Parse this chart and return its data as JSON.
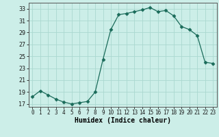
{
  "x": [
    0,
    1,
    2,
    3,
    4,
    5,
    6,
    7,
    8,
    9,
    10,
    11,
    12,
    13,
    14,
    15,
    16,
    17,
    18,
    19,
    20,
    21,
    22,
    23
  ],
  "y": [
    18.2,
    19.2,
    18.5,
    17.8,
    17.3,
    17.0,
    17.2,
    17.4,
    19.0,
    24.5,
    29.5,
    32.0,
    32.2,
    32.5,
    32.8,
    33.2,
    32.5,
    32.7,
    31.8,
    30.0,
    29.5,
    28.5,
    24.0,
    23.8
  ],
  "line_color": "#1a6b5a",
  "marker": "D",
  "marker_size": 2.5,
  "bg_color": "#cceee8",
  "grid_color": "#aad8d0",
  "xlabel": "Humidex (Indice chaleur)",
  "ylim": [
    16.5,
    34
  ],
  "xlim": [
    -0.5,
    23.5
  ],
  "yticks": [
    17,
    19,
    21,
    23,
    25,
    27,
    29,
    31,
    33
  ],
  "xticks": [
    0,
    1,
    2,
    3,
    4,
    5,
    6,
    7,
    8,
    9,
    10,
    11,
    12,
    13,
    14,
    15,
    16,
    17,
    18,
    19,
    20,
    21,
    22,
    23
  ],
  "xlabel_fontsize": 7,
  "ytick_fontsize": 6,
  "xtick_fontsize": 5.5
}
